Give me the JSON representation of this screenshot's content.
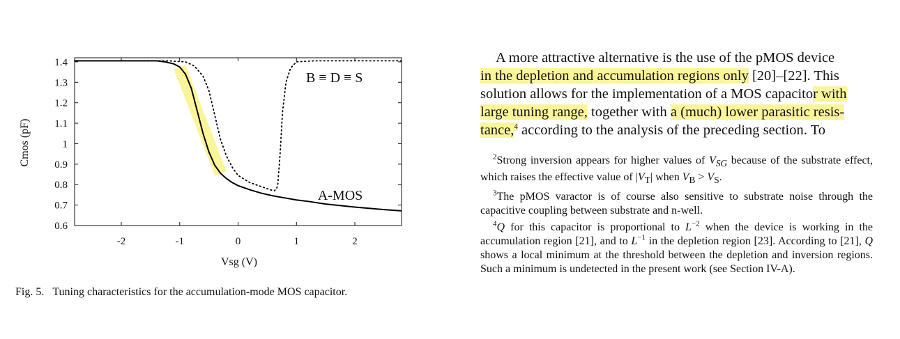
{
  "figure": {
    "caption_number": "Fig. 5.",
    "caption_text": "Tuning characteristics for the accumulation-mode MOS capacitor."
  },
  "chart_data": {
    "type": "line",
    "xlabel": "Vsg (V)",
    "ylabel": "Cmos (pF)",
    "xlim": [
      -2.8,
      2.8
    ],
    "ylim": [
      0.6,
      1.42
    ],
    "x_ticks": [
      -2,
      -1,
      0,
      1,
      2
    ],
    "x_tick_labels": [
      "-2",
      "-1",
      "0",
      "1",
      "2"
    ],
    "y_ticks": [
      0.6,
      0.7,
      0.8,
      0.9,
      1.0,
      1.1,
      1.2,
      1.3,
      1.4
    ],
    "y_tick_labels": [
      "0.6",
      "0.7",
      "0.8",
      "0.9",
      "1",
      "1.1",
      "1.2",
      "1.3",
      "1.4"
    ],
    "grid": false,
    "series": [
      {
        "name": "A-MOS",
        "style": "solid",
        "color": "#000000",
        "x": [
          -2.8,
          -1.4,
          -1.25,
          -1.1,
          -1.0,
          -0.9,
          -0.8,
          -0.7,
          -0.6,
          -0.5,
          -0.4,
          -0.3,
          -0.2,
          -0.1,
          0.0,
          0.2,
          0.4,
          0.6,
          0.8,
          1.0,
          1.2,
          1.5,
          2.0,
          2.5,
          2.8
        ],
        "y": [
          1.405,
          1.405,
          1.4,
          1.39,
          1.375,
          1.34,
          1.27,
          1.16,
          1.05,
          0.96,
          0.895,
          0.855,
          0.83,
          0.81,
          0.795,
          0.775,
          0.758,
          0.745,
          0.735,
          0.725,
          0.718,
          0.705,
          0.69,
          0.678,
          0.672
        ]
      },
      {
        "name": "B ≡ D ≡ S",
        "style": "dotted",
        "color": "#000000",
        "x": [
          -2.8,
          -1.2,
          -0.9,
          -0.75,
          -0.6,
          -0.5,
          -0.4,
          -0.3,
          -0.2,
          -0.1,
          0.0,
          0.2,
          0.4,
          0.55,
          0.62,
          0.66,
          0.68,
          0.72,
          0.76,
          0.82,
          0.9,
          1.0,
          1.3,
          2.0,
          2.8
        ],
        "y": [
          1.405,
          1.405,
          1.4,
          1.38,
          1.33,
          1.26,
          1.14,
          1.02,
          0.94,
          0.885,
          0.845,
          0.81,
          0.79,
          0.775,
          0.77,
          0.78,
          0.8,
          0.95,
          1.15,
          1.3,
          1.37,
          1.4,
          1.405,
          1.405,
          1.405
        ]
      }
    ],
    "annotations": [
      {
        "text": "B ≡ D ≡ S",
        "x": 1.65,
        "y": 1.325
      },
      {
        "text": "A-MOS",
        "x": 1.75,
        "y": 0.75
      }
    ],
    "highlight": {
      "color": "#fbf59a",
      "x_range": [
        -1.0,
        -0.3
      ]
    }
  },
  "paragraph": {
    "lines": [
      {
        "segments": [
          {
            "t": "A more attractive alternative is the use of the pMOS device",
            "hl": false
          }
        ]
      },
      {
        "segments": [
          {
            "t": "in the depletion and accumulation regions only",
            "hl": true
          },
          {
            "t": " [20]–[22]. This",
            "hl": false
          }
        ]
      },
      {
        "segments": [
          {
            "t": "solution allows for the implementation of a MOS capacito",
            "hl": false
          },
          {
            "t": "r with",
            "hl": true
          }
        ]
      },
      {
        "segments": [
          {
            "t": "large tuning range,",
            "hl": true
          },
          {
            "t": " together with ",
            "hl": false
          },
          {
            "t": "a (much) lower parasitic resis-",
            "hl": true
          }
        ]
      },
      {
        "segments": [
          {
            "t": "tance,",
            "hl": true
          },
          {
            "t": "4",
            "hl": true,
            "sup": true
          },
          {
            "t": " according to the analysis of the preceding section. To",
            "hl": false
          }
        ]
      }
    ]
  },
  "footnotes": {
    "fn2_mark": "2",
    "fn2_a": "Strong inversion appears for higher values of ",
    "fn2_v_italic": "V",
    "fn2_v_sub": "SG",
    "fn2_b": " because of the substrate effect, which raises the effective value of |",
    "fn2_vt_italic": "V",
    "fn2_vt_sub": "T",
    "fn2_c": "| when ",
    "fn2_vb_italic": "V",
    "fn2_vb_sub": "B",
    "fn2_gt": " > ",
    "fn2_vs_italic": "V",
    "fn2_vs_sub": "S",
    "fn2_end": ".",
    "fn3_mark": "3",
    "fn3_text": "The pMOS varactor is of course also sensitive to substrate noise through the capacitive coupling between substrate and n-well.",
    "fn4_mark": "4",
    "fn4_q": "Q",
    "fn4_a": " for this capacitor is proportional to ",
    "fn4_l": "L",
    "fn4_exp1": "−2",
    "fn4_b": " when the device is working in the accumulation region [21], and to ",
    "fn4_l2": "L",
    "fn4_exp2": "−1",
    "fn4_c": " in the depletion region [23]. According to [21], ",
    "fn4_q2": "Q",
    "fn4_d": " shows a local minimum at the threshold between the depletion and inversion regions. Such a minimum is undetected in the present work (see Section IV-A)."
  }
}
